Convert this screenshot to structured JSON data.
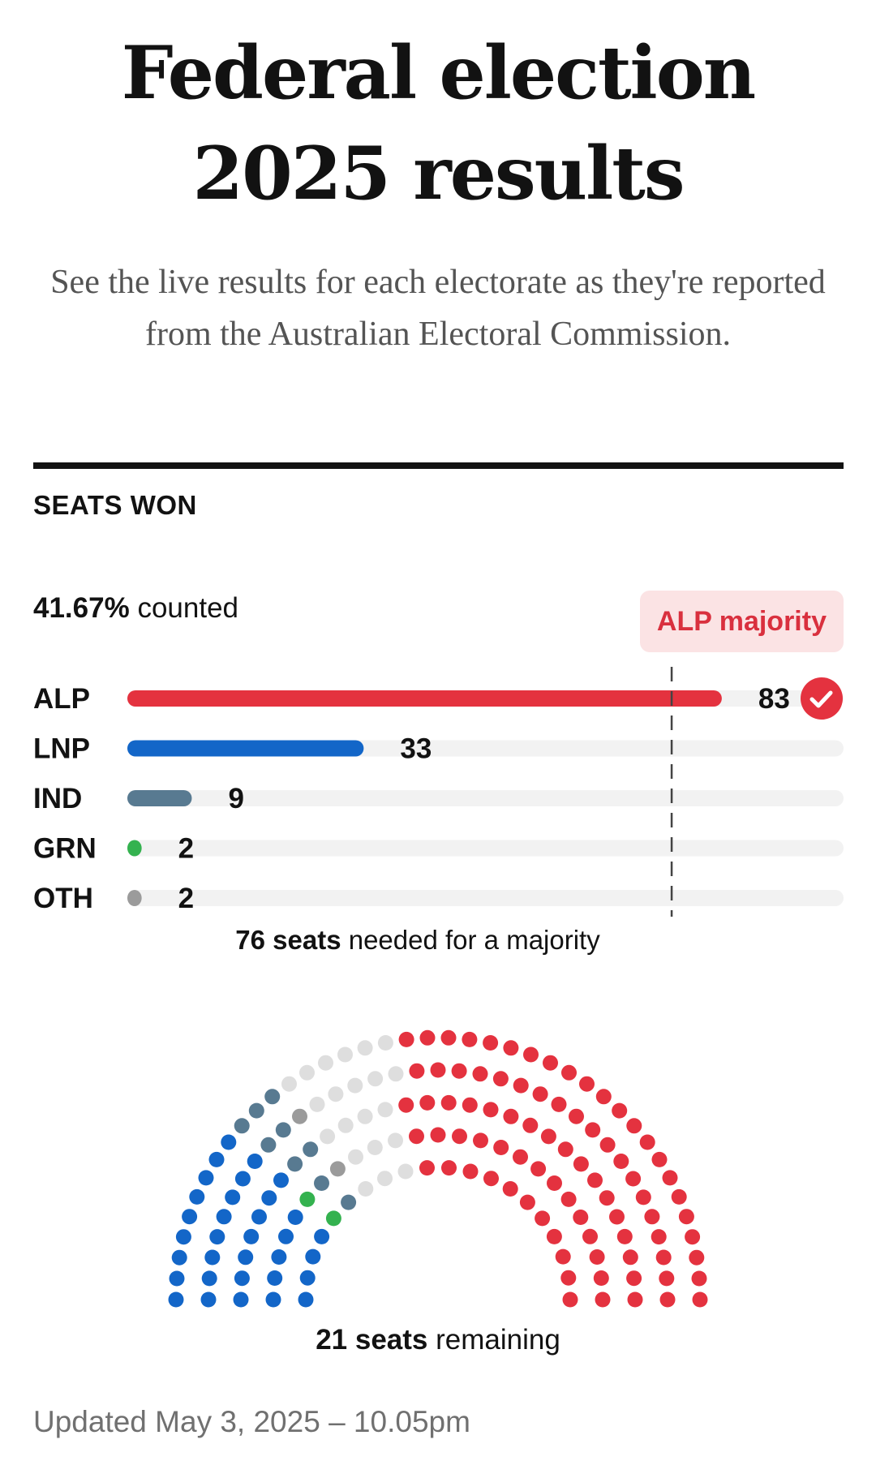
{
  "page": {
    "title": "Federal election 2025 results",
    "subtitle": "See the live results for each electorate as they're reported from the Australian Electoral Commission.",
    "section_label": "SEATS WON",
    "counted_value": "41.67%",
    "counted_suffix": " counted",
    "majority_badge": "ALP majority",
    "majority_note_bold": "76 seats",
    "majority_note_rest": " needed for a majority",
    "remaining_note_bold": "21 seats",
    "remaining_note_rest": " remaining",
    "updated": "Updated May 3, 2025 – 10.05pm"
  },
  "colors": {
    "ALP": "#e4323f",
    "LNP": "#1366c8",
    "IND": "#587a91",
    "GRN": "#34b24f",
    "OTH": "#9b9b9b",
    "remaining": "#dedede",
    "unknown": "#c63a10",
    "track": "#f2f2f2"
  },
  "chart_data": [
    {
      "type": "bar",
      "orientation": "horizontal",
      "categories": [
        "ALP",
        "LNP",
        "IND",
        "GRN",
        "OTH"
      ],
      "values": [
        83,
        33,
        9,
        2,
        2
      ],
      "xlim": [
        0,
        100
      ],
      "reference_line": {
        "value": 76,
        "label": "76 seats needed for a majority"
      },
      "winner_marker": "ALP"
    },
    {
      "type": "hemicycle",
      "total_seats": 150,
      "groups": [
        {
          "party": "LNP",
          "seats": 33
        },
        {
          "party": "GRN",
          "seats": 2
        },
        {
          "party": "IND",
          "seats": 9
        },
        {
          "party": "OTH",
          "seats": 2
        },
        {
          "party": "remaining",
          "seats": 21
        },
        {
          "party": "ALP",
          "seats": 83
        }
      ]
    }
  ]
}
